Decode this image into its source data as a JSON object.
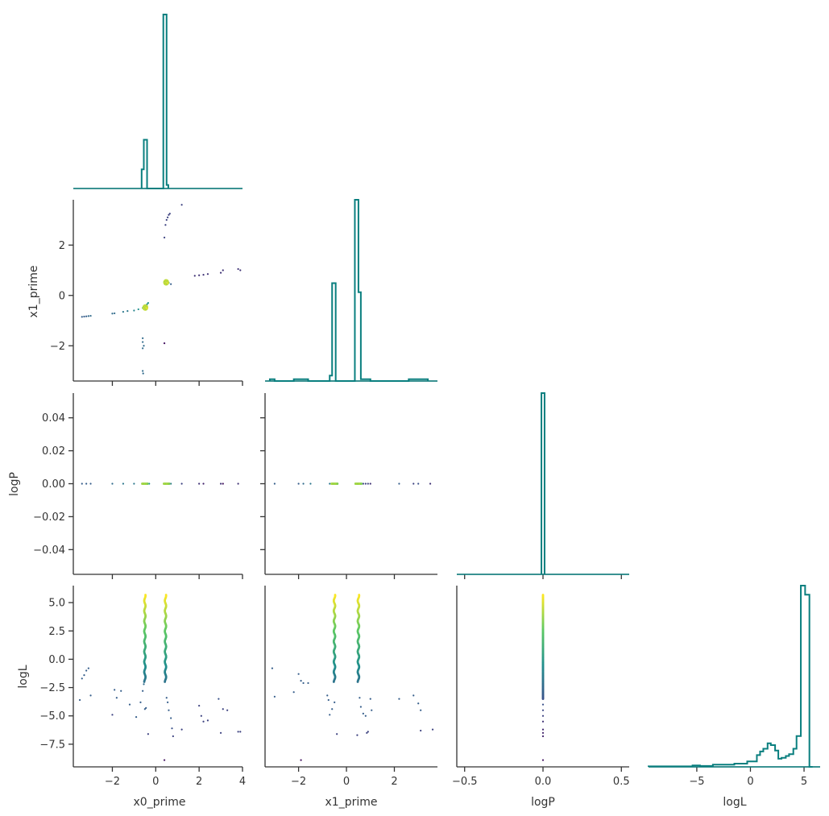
{
  "chart_data": [
    {
      "type": "histogram",
      "panel": "x0_prime",
      "xlim": [
        -3.8,
        4.0
      ],
      "bins": [
        {
          "x0": -0.65,
          "x1": -0.55,
          "h": 0.11
        },
        {
          "x0": -0.55,
          "x1": -0.4,
          "h": 0.28
        },
        {
          "x0": 0.35,
          "x1": 0.5,
          "h": 1.0
        },
        {
          "x0": 0.5,
          "x1": 0.58,
          "h": 0.02
        }
      ]
    },
    {
      "type": "scatter",
      "panel": "x0_prime vs x1_prime",
      "xlim": [
        -3.8,
        4.0
      ],
      "ylim": [
        -3.4,
        3.8
      ],
      "x_ticks": [
        -2,
        0,
        2,
        4
      ],
      "y_ticks": [
        -2,
        0,
        2
      ],
      "ylabel": "x1_prime",
      "points": [
        [
          -3.4,
          -0.85,
          0.3
        ],
        [
          -3.3,
          -0.84,
          0.3
        ],
        [
          -3.2,
          -0.83,
          0.3
        ],
        [
          -3.1,
          -0.82,
          0.35
        ],
        [
          -3.0,
          -0.81,
          0.35
        ],
        [
          -2.0,
          -0.72,
          0.35
        ],
        [
          -1.9,
          -0.71,
          0.35
        ],
        [
          -1.5,
          -0.65,
          0.4
        ],
        [
          -1.3,
          -0.62,
          0.4
        ],
        [
          -1.0,
          -0.6,
          0.45
        ],
        [
          -0.8,
          -0.55,
          0.5
        ],
        [
          -0.6,
          -0.5,
          0.7
        ],
        [
          -0.5,
          -0.48,
          0.9
        ],
        [
          -0.45,
          -0.45,
          0.95
        ],
        [
          -0.55,
          -0.52,
          0.8
        ],
        [
          -0.4,
          -0.35,
          0.5
        ],
        [
          -0.35,
          -0.3,
          0.5
        ],
        [
          -0.6,
          -1.7,
          0.35
        ],
        [
          -0.6,
          -1.85,
          0.35
        ],
        [
          -0.55,
          -2.0,
          0.35
        ],
        [
          -0.6,
          -2.1,
          0.35
        ],
        [
          -0.6,
          -3.0,
          0.35
        ],
        [
          -0.58,
          -3.1,
          0.35
        ],
        [
          0.4,
          -1.9,
          0.05
        ],
        [
          0.45,
          0.5,
          0.95
        ],
        [
          0.5,
          0.55,
          0.9
        ],
        [
          0.55,
          0.52,
          0.85
        ],
        [
          0.4,
          0.48,
          0.8
        ],
        [
          0.6,
          0.5,
          0.6
        ],
        [
          0.7,
          0.45,
          0.3
        ],
        [
          0.4,
          2.3,
          0.2
        ],
        [
          0.45,
          2.8,
          0.2
        ],
        [
          0.5,
          3.0,
          0.2
        ],
        [
          0.55,
          3.1,
          0.2
        ],
        [
          0.6,
          3.2,
          0.2
        ],
        [
          0.65,
          3.25,
          0.2
        ],
        [
          1.2,
          3.6,
          0.2
        ],
        [
          1.8,
          0.78,
          0.15
        ],
        [
          2.0,
          0.8,
          0.15
        ],
        [
          2.2,
          0.82,
          0.15
        ],
        [
          2.4,
          0.85,
          0.15
        ],
        [
          3.0,
          0.9,
          0.15
        ],
        [
          3.1,
          1.0,
          0.15
        ],
        [
          3.8,
          1.05,
          0.15
        ],
        [
          3.9,
          1.0,
          0.15
        ]
      ]
    },
    {
      "type": "histogram",
      "panel": "x1_prime",
      "xlim": [
        -3.4,
        3.8
      ],
      "bins": [
        {
          "x0": -3.2,
          "x1": -3.0,
          "h": 0.01
        },
        {
          "x0": -2.2,
          "x1": -1.6,
          "h": 0.01
        },
        {
          "x0": -0.7,
          "x1": -0.6,
          "h": 0.03
        },
        {
          "x0": -0.6,
          "x1": -0.45,
          "h": 0.54
        },
        {
          "x0": 0.35,
          "x1": 0.5,
          "h": 1.0
        },
        {
          "x0": 0.5,
          "x1": 0.6,
          "h": 0.49
        },
        {
          "x0": 0.6,
          "x1": 1.0,
          "h": 0.01
        },
        {
          "x0": 2.6,
          "x1": 3.4,
          "h": 0.01
        }
      ]
    },
    {
      "type": "scatter",
      "panel": "x0_prime vs logP",
      "xlim": [
        -3.8,
        4.0
      ],
      "ylim": [
        -0.055,
        0.055
      ],
      "x_ticks": [
        -2,
        0,
        2,
        4
      ],
      "y_ticks": [
        0.04,
        0.02,
        0.0,
        -0.02,
        -0.04
      ],
      "y_tick_labels": [
        "0.04",
        "0.02",
        "0.00",
        "−0.02",
        "−0.04"
      ],
      "ylabel": "logP",
      "points": [
        [
          -3.4,
          0,
          0.3
        ],
        [
          -3.2,
          0,
          0.3
        ],
        [
          -3.0,
          0,
          0.3
        ],
        [
          -2.0,
          0,
          0.35
        ],
        [
          -1.5,
          0,
          0.4
        ],
        [
          -1.0,
          0,
          0.4
        ],
        [
          -0.5,
          0,
          0.9
        ],
        [
          -0.45,
          0,
          0.95
        ],
        [
          -0.55,
          0,
          0.8
        ],
        [
          -0.3,
          0,
          0.5
        ],
        [
          0.45,
          0,
          0.95
        ],
        [
          0.5,
          0,
          0.9
        ],
        [
          0.6,
          0,
          0.7
        ],
        [
          0.7,
          0,
          0.4
        ],
        [
          1.2,
          0,
          0.2
        ],
        [
          2.0,
          0,
          0.15
        ],
        [
          2.2,
          0,
          0.1
        ],
        [
          3.0,
          0,
          0.15
        ],
        [
          3.1,
          0,
          0.05
        ],
        [
          3.8,
          0,
          0.15
        ]
      ]
    },
    {
      "type": "scatter",
      "panel": "x1_prime vs logP",
      "xlim": [
        -3.4,
        3.8
      ],
      "ylim": [
        -0.055,
        0.055
      ],
      "x_ticks": [
        -2,
        0,
        2
      ],
      "y_ticks": [
        0.04,
        0.02,
        0.0,
        -0.02,
        -0.04
      ],
      "points": [
        [
          -3.0,
          0,
          0.3
        ],
        [
          -2.0,
          0,
          0.3
        ],
        [
          -1.8,
          0,
          0.35
        ],
        [
          -1.5,
          0,
          0.4
        ],
        [
          -0.7,
          0,
          0.4
        ],
        [
          -0.5,
          0,
          0.9
        ],
        [
          -0.45,
          0,
          0.95
        ],
        [
          -0.55,
          0,
          0.8
        ],
        [
          0.45,
          0,
          0.95
        ],
        [
          0.5,
          0,
          0.9
        ],
        [
          0.6,
          0,
          0.7
        ],
        [
          0.7,
          0,
          0.2
        ],
        [
          0.8,
          0,
          0.2
        ],
        [
          0.9,
          0,
          0.2
        ],
        [
          1.0,
          0,
          0.15
        ],
        [
          2.2,
          0,
          0.3
        ],
        [
          2.8,
          0,
          0.2
        ],
        [
          3.0,
          0,
          0.25
        ],
        [
          3.5,
          0,
          0.15
        ]
      ]
    },
    {
      "type": "histogram",
      "panel": "logP",
      "xlim": [
        -0.55,
        0.55
      ],
      "x_ticks": [
        -0.5,
        0.0,
        0.5
      ],
      "bins": [
        {
          "x0": -0.01,
          "x1": 0.01,
          "h": 1.0
        }
      ]
    },
    {
      "type": "scatter",
      "panel": "x0_prime vs logL",
      "xlim": [
        -3.8,
        4.0
      ],
      "ylim": [
        -9.5,
        6.5
      ],
      "x_ticks": [
        -2,
        0,
        2,
        4
      ],
      "y_ticks": [
        5.0,
        2.5,
        0.0,
        -2.5,
        -5.0,
        -7.5
      ],
      "y_tick_labels": [
        "5.0",
        "2.5",
        "0.0",
        "−2.5",
        "−5.0",
        "−7.5"
      ],
      "xlabel": "x0_prime",
      "ylabel": "logL",
      "points": [
        [
          -3.5,
          -3.6,
          0.3
        ],
        [
          -3.4,
          -1.7,
          0.3
        ],
        [
          -3.3,
          -1.4,
          0.3
        ],
        [
          -3.2,
          -1.0,
          0.3
        ],
        [
          -3.1,
          -0.8,
          0.3
        ],
        [
          -3.0,
          -3.2,
          0.3
        ],
        [
          -2.0,
          -4.9,
          0.2
        ],
        [
          -1.9,
          -2.7,
          0.3
        ],
        [
          -1.8,
          -3.4,
          0.3
        ],
        [
          -1.6,
          -2.8,
          0.3
        ],
        [
          -1.2,
          -4.0,
          0.3
        ],
        [
          -0.9,
          -5.1,
          0.3
        ],
        [
          -0.7,
          -3.8,
          0.3
        ],
        [
          -0.6,
          -2.8,
          0.3
        ],
        [
          -0.55,
          -2.2,
          0.35
        ],
        [
          -0.5,
          -4.4,
          0.3
        ],
        [
          -0.45,
          -4.3,
          0.3
        ],
        [
          -0.35,
          -6.6,
          0.2
        ],
        [
          0.4,
          -8.9,
          0.05
        ],
        [
          0.5,
          -3.4,
          0.3
        ],
        [
          0.55,
          -3.8,
          0.3
        ],
        [
          0.6,
          -4.5,
          0.3
        ],
        [
          0.7,
          -5.2,
          0.3
        ],
        [
          0.75,
          -6.1,
          0.25
        ],
        [
          0.8,
          -6.8,
          0.2
        ],
        [
          1.2,
          -6.2,
          0.2
        ],
        [
          2.0,
          -4.1,
          0.2
        ],
        [
          2.1,
          -5.0,
          0.2
        ],
        [
          2.2,
          -5.5,
          0.2
        ],
        [
          2.4,
          -5.4,
          0.2
        ],
        [
          2.9,
          -3.5,
          0.25
        ],
        [
          3.0,
          -6.5,
          0.2
        ],
        [
          3.1,
          -4.4,
          0.2
        ],
        [
          3.3,
          -4.5,
          0.2
        ],
        [
          3.8,
          -6.4,
          0.2
        ],
        [
          3.9,
          -6.4,
          0.2
        ]
      ]
    },
    {
      "type": "scatter",
      "panel": "x1_prime vs logL",
      "xlim": [
        -3.4,
        3.8
      ],
      "ylim": [
        -9.5,
        6.5
      ],
      "x_ticks": [
        -2,
        0,
        2
      ],
      "xlabel": "x1_prime",
      "points": [
        [
          -3.1,
          -0.8,
          0.3
        ],
        [
          -3.0,
          -3.3,
          0.3
        ],
        [
          -2.2,
          -2.9,
          0.3
        ],
        [
          -2.0,
          -1.3,
          0.3
        ],
        [
          -1.9,
          -1.9,
          0.3
        ],
        [
          -1.8,
          -2.1,
          0.3
        ],
        [
          -1.6,
          -2.1,
          0.3
        ],
        [
          -1.9,
          -8.9,
          0.05
        ],
        [
          -0.8,
          -3.2,
          0.3
        ],
        [
          -0.75,
          -3.6,
          0.3
        ],
        [
          -0.7,
          -4.9,
          0.3
        ],
        [
          -0.6,
          -4.4,
          0.3
        ],
        [
          -0.5,
          -3.8,
          0.3
        ],
        [
          -0.4,
          -6.6,
          0.2
        ],
        [
          0.45,
          -6.7,
          0.2
        ],
        [
          0.55,
          -3.4,
          0.3
        ],
        [
          0.6,
          -4.2,
          0.3
        ],
        [
          0.7,
          -4.8,
          0.3
        ],
        [
          0.8,
          -5.0,
          0.3
        ],
        [
          0.85,
          -6.5,
          0.2
        ],
        [
          0.9,
          -6.4,
          0.2
        ],
        [
          1.0,
          -3.5,
          0.3
        ],
        [
          1.05,
          -4.5,
          0.3
        ],
        [
          2.2,
          -3.5,
          0.3
        ],
        [
          2.8,
          -3.2,
          0.3
        ],
        [
          3.0,
          -3.9,
          0.3
        ],
        [
          3.1,
          -4.5,
          0.3
        ],
        [
          3.1,
          -6.3,
          0.2
        ],
        [
          3.6,
          -6.2,
          0.2
        ]
      ]
    },
    {
      "type": "scatter",
      "panel": "logP vs logL",
      "xlim": [
        -0.55,
        0.55
      ],
      "ylim": [
        -9.5,
        6.5
      ],
      "x_ticks": [
        -0.5,
        0.0,
        0.5
      ],
      "x_tick_labels": [
        "−0.5",
        "0.0",
        "0.5"
      ],
      "xlabel": "logP",
      "points": [
        [
          0.0,
          -8.9,
          0.05
        ],
        [
          0.0,
          -6.8,
          0.1
        ],
        [
          0.0,
          -6.5,
          0.1
        ],
        [
          0.0,
          -6.2,
          0.12
        ],
        [
          0.0,
          -5.5,
          0.15
        ],
        [
          0.0,
          -5.0,
          0.2
        ],
        [
          0.0,
          -4.5,
          0.22
        ],
        [
          0.0,
          -4.0,
          0.25
        ],
        [
          0.0,
          -3.5,
          0.3
        ]
      ]
    },
    {
      "type": "histogram",
      "panel": "logL",
      "xlim": [
        -9.5,
        6.5
      ],
      "x_ticks": [
        -5,
        0,
        5
      ],
      "x_tick_labels": [
        "−5",
        "0",
        "5"
      ],
      "xlabel": "logL",
      "bins": [
        {
          "x0": -9.5,
          "x1": -5.4,
          "h": 0.003
        },
        {
          "x0": -5.4,
          "x1": -4.7,
          "h": 0.008
        },
        {
          "x0": -4.7,
          "x1": -3.5,
          "h": 0.005
        },
        {
          "x0": -3.5,
          "x1": -1.5,
          "h": 0.012
        },
        {
          "x0": -1.5,
          "x1": -0.3,
          "h": 0.018
        },
        {
          "x0": -0.3,
          "x1": 0.6,
          "h": 0.03
        },
        {
          "x0": 0.6,
          "x1": 0.9,
          "h": 0.065
        },
        {
          "x0": 0.9,
          "x1": 1.2,
          "h": 0.085
        },
        {
          "x0": 1.2,
          "x1": 1.6,
          "h": 0.1
        },
        {
          "x0": 1.6,
          "x1": 1.9,
          "h": 0.13
        },
        {
          "x0": 1.9,
          "x1": 2.3,
          "h": 0.12
        },
        {
          "x0": 2.3,
          "x1": 2.6,
          "h": 0.09
        },
        {
          "x0": 2.6,
          "x1": 2.9,
          "h": 0.045
        },
        {
          "x0": 2.9,
          "x1": 3.3,
          "h": 0.05
        },
        {
          "x0": 3.3,
          "x1": 3.6,
          "h": 0.06
        },
        {
          "x0": 3.6,
          "x1": 4.0,
          "h": 0.07
        },
        {
          "x0": 4.0,
          "x1": 4.3,
          "h": 0.1
        },
        {
          "x0": 4.3,
          "x1": 4.7,
          "h": 0.17
        },
        {
          "x0": 4.7,
          "x1": 5.1,
          "h": 1.0
        },
        {
          "x0": 5.1,
          "x1": 5.5,
          "h": 0.95
        },
        {
          "x0": 5.5,
          "x1": 5.8,
          "h": 0.0
        }
      ]
    }
  ],
  "colors": {
    "hist": "#0a7f7f",
    "axis": "#333333",
    "viridis": [
      "#440154",
      "#3b528b",
      "#21908d",
      "#5dc963",
      "#fde725"
    ]
  },
  "labels": {
    "x0_prime": "x0_prime",
    "x1_prime": "x1_prime",
    "logP": "logP",
    "logL": "logL"
  }
}
